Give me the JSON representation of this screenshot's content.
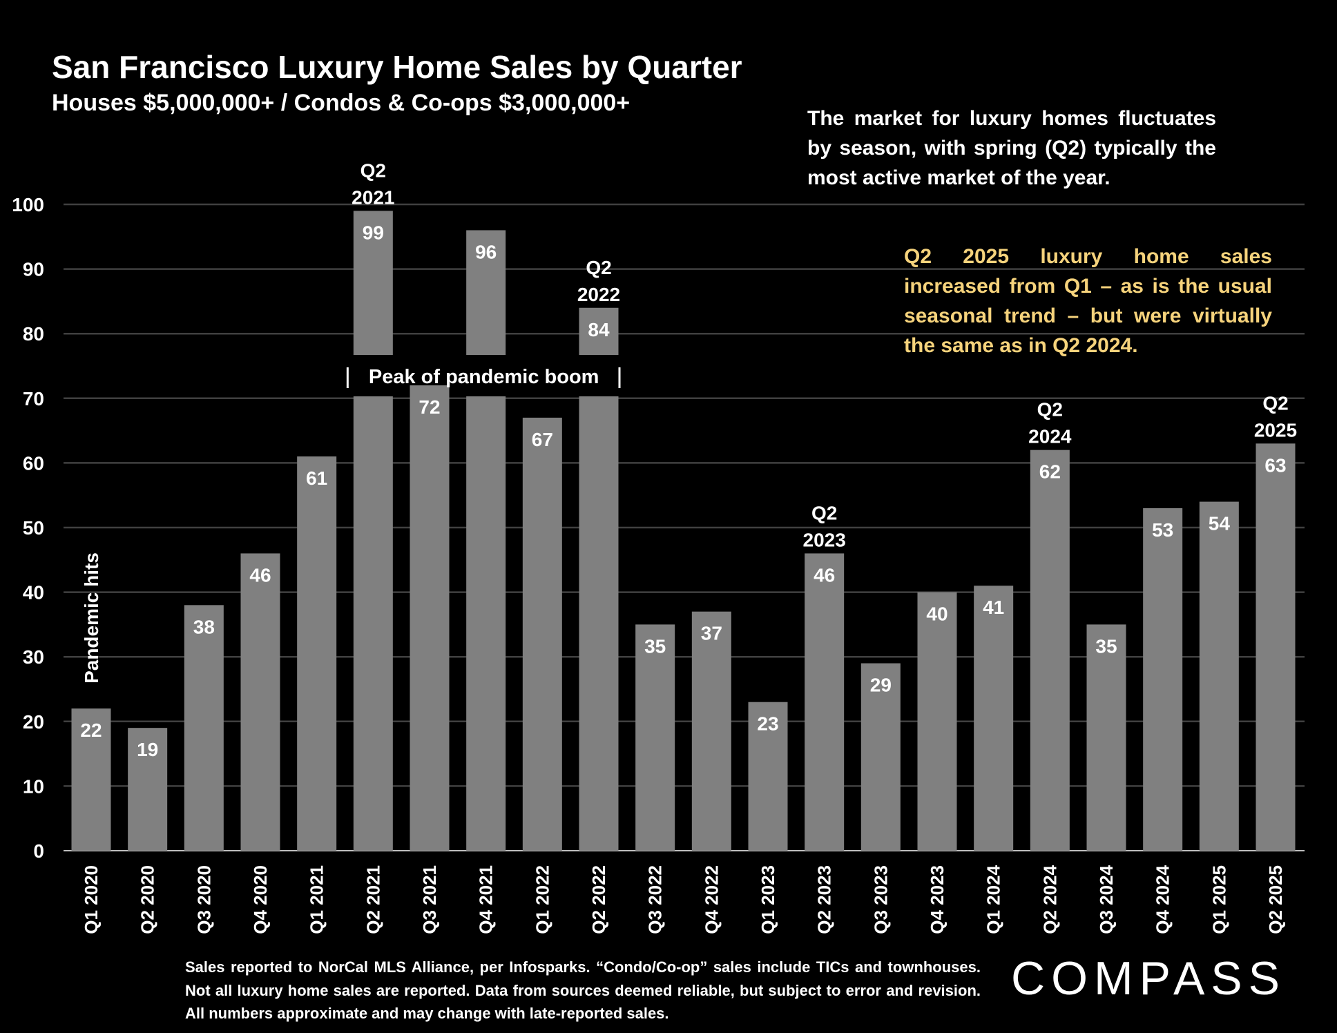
{
  "header": {
    "title": "San Francisco Luxury Home Sales by Quarter",
    "subtitle": "Houses $5,000,000+ / Condos & Co-ops $3,000,000+"
  },
  "notes": {
    "seasonal": "The market for luxury homes fluctuates by season, with spring (Q2) typically the most active market of the year.",
    "highlight": "Q2 2025 luxury home sales increased from Q1 – as is the usual seasonal trend – but were virtually the same as in Q2 2024."
  },
  "footer": {
    "source": "Sales reported to NorCal MLS Alliance, per Infosparks. “Condo/Co-op” sales include TICs and townhouses. Not all luxury home sales are reported. Data from sources deemed reliable, but subject to error and revision. All numbers approximate and may change with late-reported sales.",
    "logo": "COMPASS"
  },
  "colors": {
    "bar": "#808080",
    "grid": "#404040",
    "highlight": "#f6d37c",
    "background": "#000000"
  },
  "chart_data": {
    "type": "bar",
    "title": "San Francisco Luxury Home Sales by Quarter",
    "xlabel": "",
    "ylabel": "",
    "ylim": [
      0,
      100
    ],
    "yticks": [
      0,
      10,
      20,
      30,
      40,
      50,
      60,
      70,
      80,
      90,
      100
    ],
    "grid": true,
    "categories": [
      "Q1 2020",
      "Q2 2020",
      "Q3 2020",
      "Q4 2020",
      "Q1 2021",
      "Q2 2021",
      "Q3 2021",
      "Q4 2021",
      "Q1 2022",
      "Q2 2022",
      "Q3 2022",
      "Q4 2022",
      "Q1 2023",
      "Q2 2023",
      "Q3 2023",
      "Q4 2023",
      "Q1 2024",
      "Q2 2024",
      "Q3 2024",
      "Q4 2024",
      "Q1 2025",
      "Q2 2025"
    ],
    "values": [
      22,
      19,
      38,
      46,
      61,
      99,
      72,
      96,
      67,
      84,
      35,
      37,
      23,
      46,
      29,
      40,
      41,
      62,
      35,
      53,
      54,
      63
    ],
    "axis_break": {
      "range": [
        70.5,
        77
      ],
      "categories": [
        "Q2 2021",
        "Q4 2021",
        "Q2 2022"
      ],
      "label": "Peak of pandemic boom"
    },
    "annotations": [
      {
        "category": "Q1 2020",
        "text": "Pandemic hits"
      },
      {
        "category": "Q2 2021",
        "lines": [
          "Q2",
          "2021"
        ]
      },
      {
        "category": "Q2 2022",
        "lines": [
          "Q2",
          "2022"
        ]
      },
      {
        "category": "Q2 2023",
        "lines": [
          "Q2",
          "2023"
        ]
      },
      {
        "category": "Q2 2024",
        "lines": [
          "Q2",
          "2024"
        ]
      },
      {
        "category": "Q2 2025",
        "lines": [
          "Q2",
          "2025"
        ]
      }
    ]
  }
}
